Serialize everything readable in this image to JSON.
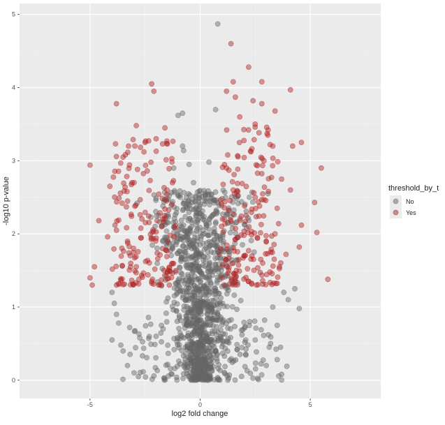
{
  "chart_data": {
    "type": "scatter",
    "title": "",
    "xlabel": "log2 fold change",
    "ylabel": "-log10 p-value",
    "xlim": [
      -8.2,
      8.2
    ],
    "ylim": [
      -0.25,
      5.15
    ],
    "x_ticks": [
      -5,
      0,
      5
    ],
    "y_ticks": [
      0,
      1,
      2,
      3,
      4,
      5
    ],
    "x_tick_labels": [
      "-5",
      "0",
      "5"
    ],
    "y_tick_labels": [
      "0",
      "1",
      "2",
      "3",
      "4",
      "5"
    ],
    "grid": true,
    "panel_background": "#ebebeb",
    "legend": {
      "title": "threshold_by_t",
      "position": "right",
      "entries": [
        {
          "label": "No",
          "color": "#666666"
        },
        {
          "label": "Yes",
          "color": "#b22222"
        }
      ]
    },
    "series": [
      {
        "name": "No",
        "color": "#666666",
        "points": [
          [
            0.8,
            4.87
          ],
          [
            -0.8,
            3.65
          ],
          [
            -1.0,
            3.62
          ],
          [
            0.7,
            3.7
          ],
          [
            -0.8,
            3.2
          ],
          [
            -0.75,
            3.14
          ],
          [
            0.4,
            2.98
          ],
          [
            -0.5,
            2.95
          ],
          [
            -1.2,
            2.9
          ],
          [
            -0.3,
            2.7
          ],
          [
            0.2,
            2.45
          ],
          [
            -0.2,
            2.5
          ],
          [
            -4.0,
            1.2
          ],
          [
            -3.9,
            1.05
          ],
          [
            -3.8,
            0.9
          ],
          [
            -3.7,
            0.78
          ],
          [
            -4.0,
            0.55
          ],
          [
            -3.6,
            0.48
          ],
          [
            -3.3,
            0.2
          ],
          [
            -3.0,
            0.1
          ],
          [
            -2.8,
            0.05
          ],
          [
            -3.5,
            0.4
          ],
          [
            -3.2,
            0.72
          ],
          [
            -2.0,
            0.6
          ],
          [
            3.5,
            0.28
          ],
          [
            3.7,
            0.08
          ],
          [
            3.2,
            0.5
          ],
          [
            3.5,
            0.75
          ],
          [
            3.8,
            1.2
          ],
          [
            4.0,
            1.1
          ],
          [
            4.3,
            1.25
          ],
          [
            4.5,
            0.98
          ],
          [
            3.3,
            1.0
          ],
          [
            3.0,
            0.2
          ],
          [
            2.5,
            0.55
          ],
          [
            3.1,
            0.62
          ]
        ],
        "cloud": {
          "count": 1300,
          "x_spread_at_top": 1.65,
          "x_spread_at_bottom": 0.9,
          "y_range": [
            0,
            2.6
          ]
        }
      },
      {
        "name": "Yes",
        "color": "#b22222",
        "points": [
          [
            -3.8,
            3.78
          ],
          [
            -2.2,
            4.05
          ],
          [
            -2.1,
            3.95
          ],
          [
            2.2,
            4.28
          ],
          [
            1.4,
            4.6
          ],
          [
            1.5,
            4.08
          ],
          [
            1.2,
            3.95
          ],
          [
            2.8,
            4.08
          ],
          [
            4.1,
            3.97
          ],
          [
            1.6,
            3.87
          ],
          [
            2.4,
            3.82
          ],
          [
            2.8,
            3.78
          ],
          [
            1.8,
            3.6
          ],
          [
            3.4,
            3.68
          ],
          [
            -2.9,
            3.48
          ],
          [
            -1.6,
            3.45
          ],
          [
            2.5,
            3.5
          ],
          [
            -5.0,
            2.94
          ],
          [
            -4.1,
            2.65
          ],
          [
            -4.6,
            2.18
          ],
          [
            -4.2,
            1.96
          ],
          [
            -3.8,
            2.05
          ],
          [
            -4.8,
            1.55
          ],
          [
            -5.0,
            1.4
          ],
          [
            -4.9,
            1.3
          ],
          [
            5.2,
            2.43
          ],
          [
            5.5,
            2.9
          ],
          [
            5.8,
            1.38
          ],
          [
            5.3,
            2.02
          ],
          [
            4.6,
            2.12
          ],
          [
            4.5,
            1.82
          ],
          [
            3.9,
            1.72
          ],
          [
            3.6,
            1.55
          ],
          [
            3.2,
            1.75
          ],
          [
            4.1,
            2.6
          ],
          [
            4.2,
            3.2
          ],
          [
            4.6,
            3.25
          ],
          [
            3.5,
            2.35
          ],
          [
            3.4,
            2.0
          ],
          [
            3.0,
            1.9
          ],
          [
            3.7,
            2.75
          ],
          [
            3.1,
            2.58
          ],
          [
            2.5,
            2.5
          ],
          [
            2.7,
            2.38
          ],
          [
            -2.4,
            2.86
          ],
          [
            -3.0,
            2.7
          ],
          [
            -3.5,
            3.05
          ],
          [
            -2.0,
            3.3
          ],
          [
            -2.5,
            3.25
          ],
          [
            -1.5,
            2.6
          ],
          [
            -1.7,
            2.2
          ],
          [
            -3.3,
            1.9
          ],
          [
            -2.9,
            1.55
          ],
          [
            -1.4,
            1.3
          ],
          [
            -2.2,
            1.35
          ],
          [
            -1.1,
            1.5
          ],
          [
            1.0,
            1.4
          ],
          [
            1.3,
            1.5
          ],
          [
            1.6,
            1.45
          ],
          [
            2.0,
            1.7
          ],
          [
            2.2,
            1.35
          ],
          [
            1.1,
            2.2
          ],
          [
            1.5,
            2.6
          ],
          [
            1.2,
            2.9
          ],
          [
            2.9,
            3.0
          ],
          [
            3.3,
            3.2
          ]
        ],
        "cloud": {
          "count": 340,
          "groups": [
            {
              "x_range": [
                -3.9,
                -1.2
              ],
              "y_range": [
                1.3,
                3.3
              ]
            },
            {
              "x_range": [
                1.0,
                3.6
              ],
              "y_range": [
                1.3,
                3.5
              ]
            }
          ]
        }
      }
    ]
  }
}
